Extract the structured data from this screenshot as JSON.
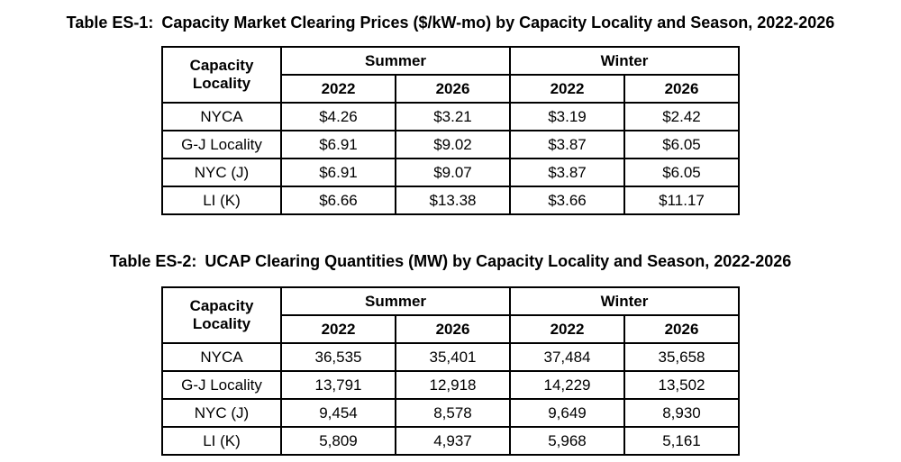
{
  "page": {
    "background_color": "#ffffff",
    "text_color": "#000000"
  },
  "tables": [
    {
      "title_prefix": "Table ES-1:",
      "title_text": "Capacity Market Clearing Prices ($/kW-mo) by Capacity Locality and Season, 2022-2026",
      "header": {
        "corner_line1": "Capacity",
        "corner_line2": "Locality",
        "groups": [
          "Summer",
          "Winter"
        ],
        "years": [
          "2022",
          "2026",
          "2022",
          "2026"
        ]
      },
      "rows": [
        {
          "locality": "NYCA",
          "values": [
            "$4.26",
            "$3.21",
            "$3.19",
            "$2.42"
          ]
        },
        {
          "locality": "G-J Locality",
          "values": [
            "$6.91",
            "$9.02",
            "$3.87",
            "$6.05"
          ]
        },
        {
          "locality": "NYC (J)",
          "values": [
            "$6.91",
            "$9.07",
            "$3.87",
            "$6.05"
          ]
        },
        {
          "locality": "LI (K)",
          "values": [
            "$6.66",
            "$13.38",
            "$3.66",
            "$11.17"
          ]
        }
      ]
    },
    {
      "title_prefix": "Table ES-2:",
      "title_text": "UCAP Clearing Quantities (MW) by Capacity Locality and Season, 2022-2026",
      "header": {
        "corner_line1": "Capacity",
        "corner_line2": "Locality",
        "groups": [
          "Summer",
          "Winter"
        ],
        "years": [
          "2022",
          "2026",
          "2022",
          "2026"
        ]
      },
      "rows": [
        {
          "locality": "NYCA",
          "values": [
            "36,535",
            "35,401",
            "37,484",
            "35,658"
          ]
        },
        {
          "locality": "G-J Locality",
          "values": [
            "13,791",
            "12,918",
            "14,229",
            "13,502"
          ]
        },
        {
          "locality": "NYC (J)",
          "values": [
            "9,454",
            "8,578",
            "9,649",
            "8,930"
          ]
        },
        {
          "locality": "LI (K)",
          "values": [
            "5,809",
            "4,937",
            "5,968",
            "5,161"
          ]
        }
      ]
    }
  ]
}
